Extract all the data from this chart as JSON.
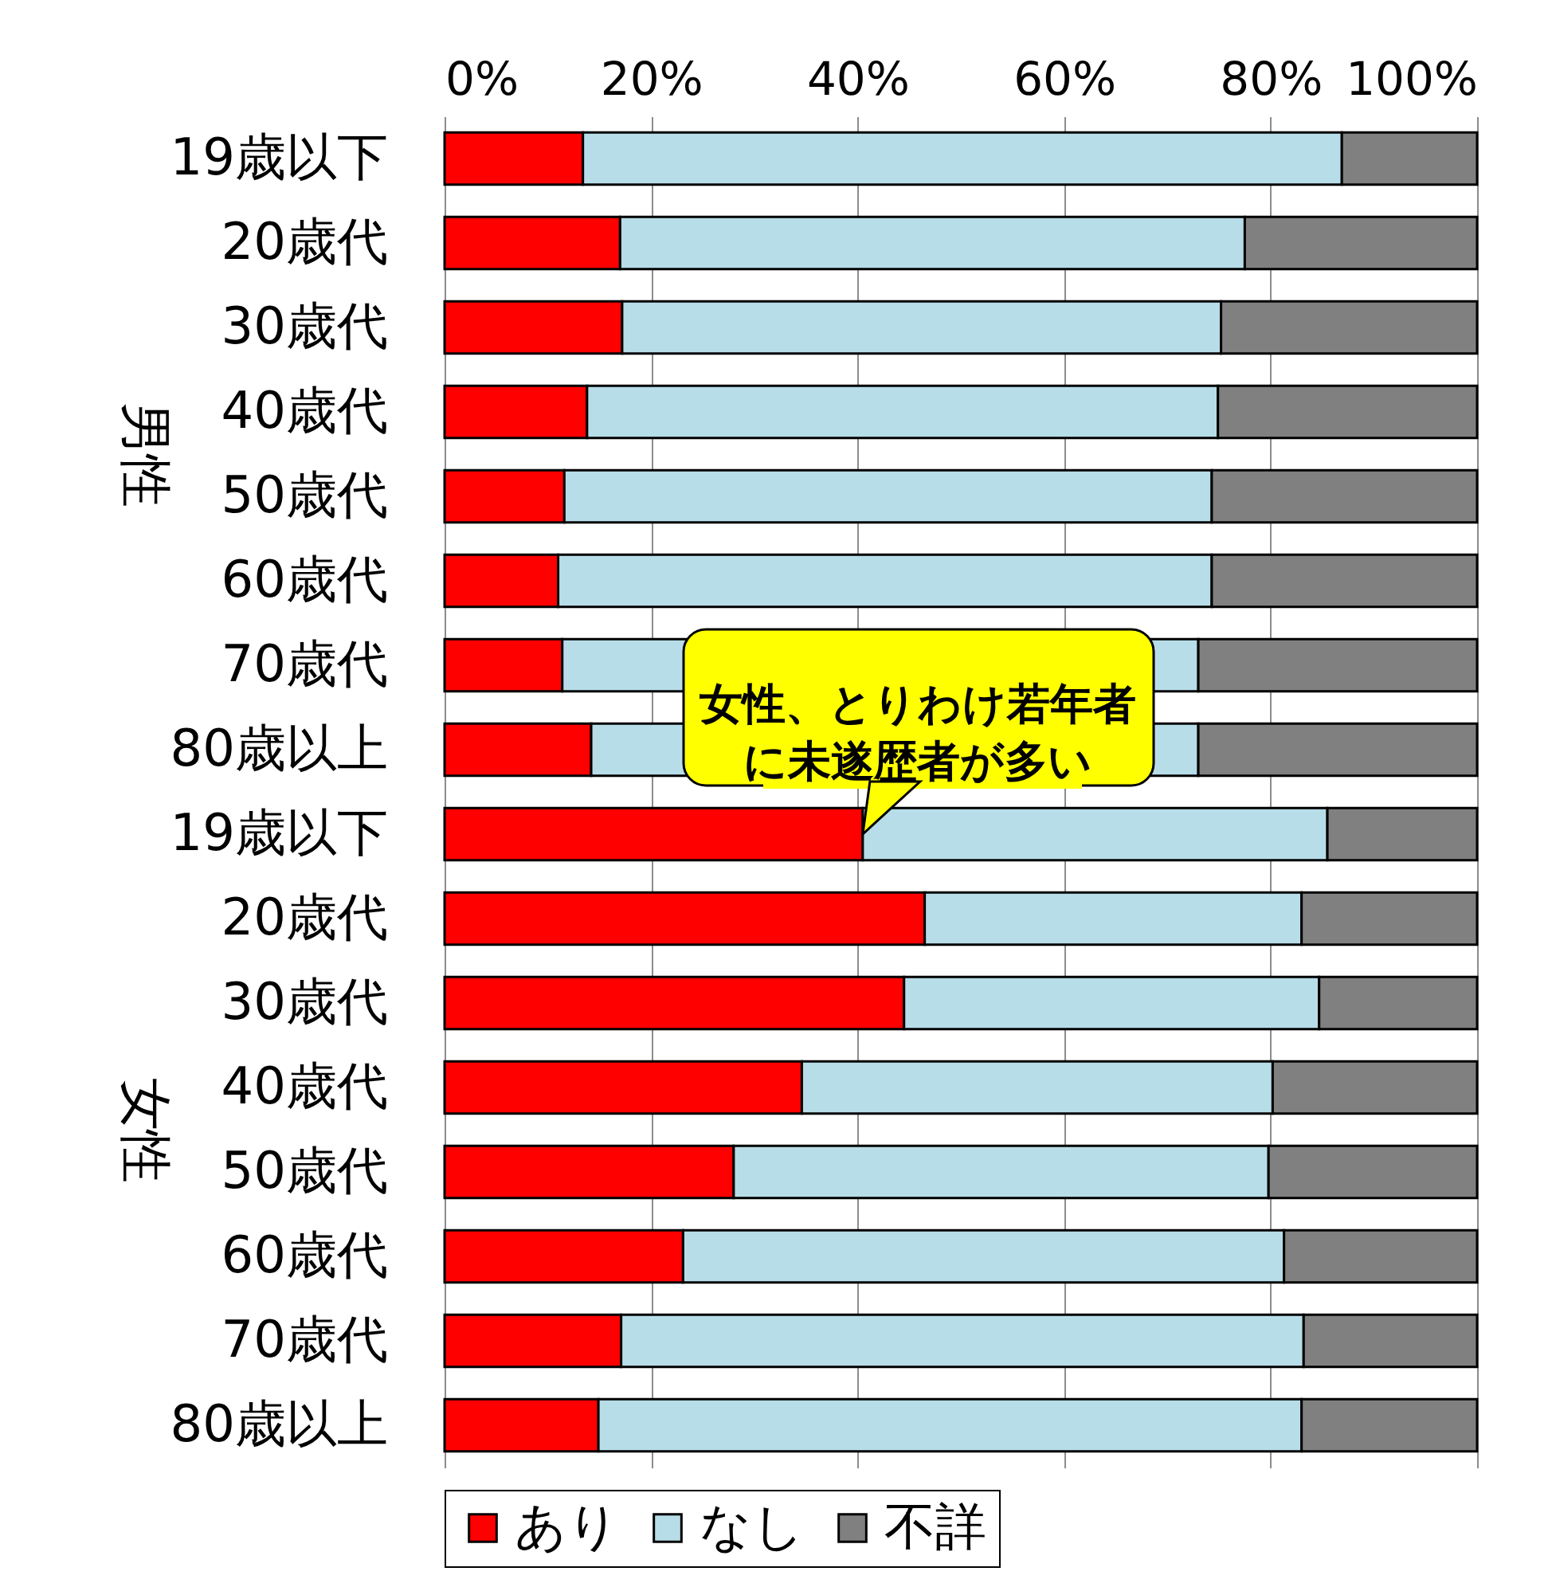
{
  "chart_data": [
    {
      "type": "bar",
      "orientation": "horizontal",
      "stacked": true,
      "ylabel": "男性",
      "categories": [
        "19歳以下",
        "20歳代",
        "30歳代",
        "40歳代",
        "50歳代",
        "60歳代",
        "70歳代",
        "80歳以上"
      ],
      "series": [
        {
          "color": "#ff0000",
          "values": [
            13.4,
            17.0,
            17.2,
            13.8,
            11.6,
            11.0,
            11.4,
            14.2
          ]
        },
        {
          "color": "#b7dde8",
          "values": [
            73.5,
            60.5,
            58.0,
            61.1,
            62.7,
            63.3,
            61.6,
            58.8
          ]
        },
        {
          "color": "#808080",
          "values": [
            13.1,
            22.5,
            24.8,
            25.1,
            25.7,
            25.7,
            27.0,
            27.0
          ]
        }
      ],
      "xlim": [
        0,
        100
      ],
      "xticks": [
        {
          "value": 0,
          "label": "0%"
        },
        {
          "value": 20,
          "label": "20%"
        },
        {
          "value": 40,
          "label": "40%"
        },
        {
          "value": 60,
          "label": "60%"
        },
        {
          "value": 80,
          "label": "80%"
        },
        {
          "value": 100,
          "label": "100%"
        }
      ],
      "grid": "x",
      "legend": false
    },
    {
      "type": "bar",
      "orientation": "horizontal",
      "stacked": true,
      "ylabel": "女性",
      "categories": [
        "19歳以下",
        "20歳代",
        "30歳代",
        "40歳代",
        "50歳代",
        "60歳代",
        "70歳代",
        "80歳以上"
      ],
      "series": [
        {
          "name": "あり",
          "color": "#ff0000",
          "values": [
            40.5,
            46.5,
            44.5,
            34.6,
            28.0,
            23.1,
            17.1,
            14.9
          ]
        },
        {
          "name": "なし",
          "color": "#b7dde8",
          "values": [
            45.0,
            36.5,
            40.2,
            45.6,
            51.8,
            58.2,
            66.1,
            68.1
          ]
        },
        {
          "name": "不詳",
          "color": "#808080",
          "values": [
            14.5,
            17.0,
            15.3,
            19.8,
            20.2,
            18.7,
            16.8,
            17.0
          ]
        }
      ],
      "xlim": [
        0,
        100
      ],
      "xticks": [
        0,
        20,
        40,
        60,
        80,
        100
      ],
      "tick_labels": "y",
      "grid": "x",
      "legend": "bottom",
      "annotations": [
        {
          "text": "女性、とりわけ若年者に未遂歴者が多い",
          "x": 40.5,
          "y": "19歳以下"
        }
      ]
    }
  ]
}
